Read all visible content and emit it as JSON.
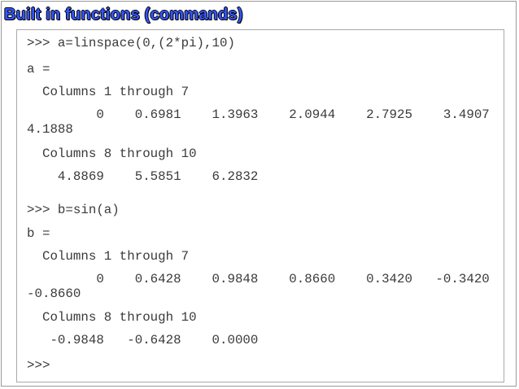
{
  "title": "Built in functions (commands)",
  "console": {
    "lines": [
      ">>> a=linspace(0,(2*pi),10)",
      "a =",
      "  Columns 1 through 7",
      "         0    0.6981    1.3963    2.0944    2.7925    3.4907",
      "4.1888",
      "  Columns 8 through 10",
      "    4.8869    5.5851    6.2832",
      ">>> b=sin(a)",
      "b =",
      "  Columns 1 through 7",
      "         0    0.6428    0.9848    0.8660    0.3420   -0.3420",
      "-0.8660",
      "  Columns 8 through 10",
      "   -0.9848   -0.6428    0.0000",
      ">>>"
    ]
  }
}
